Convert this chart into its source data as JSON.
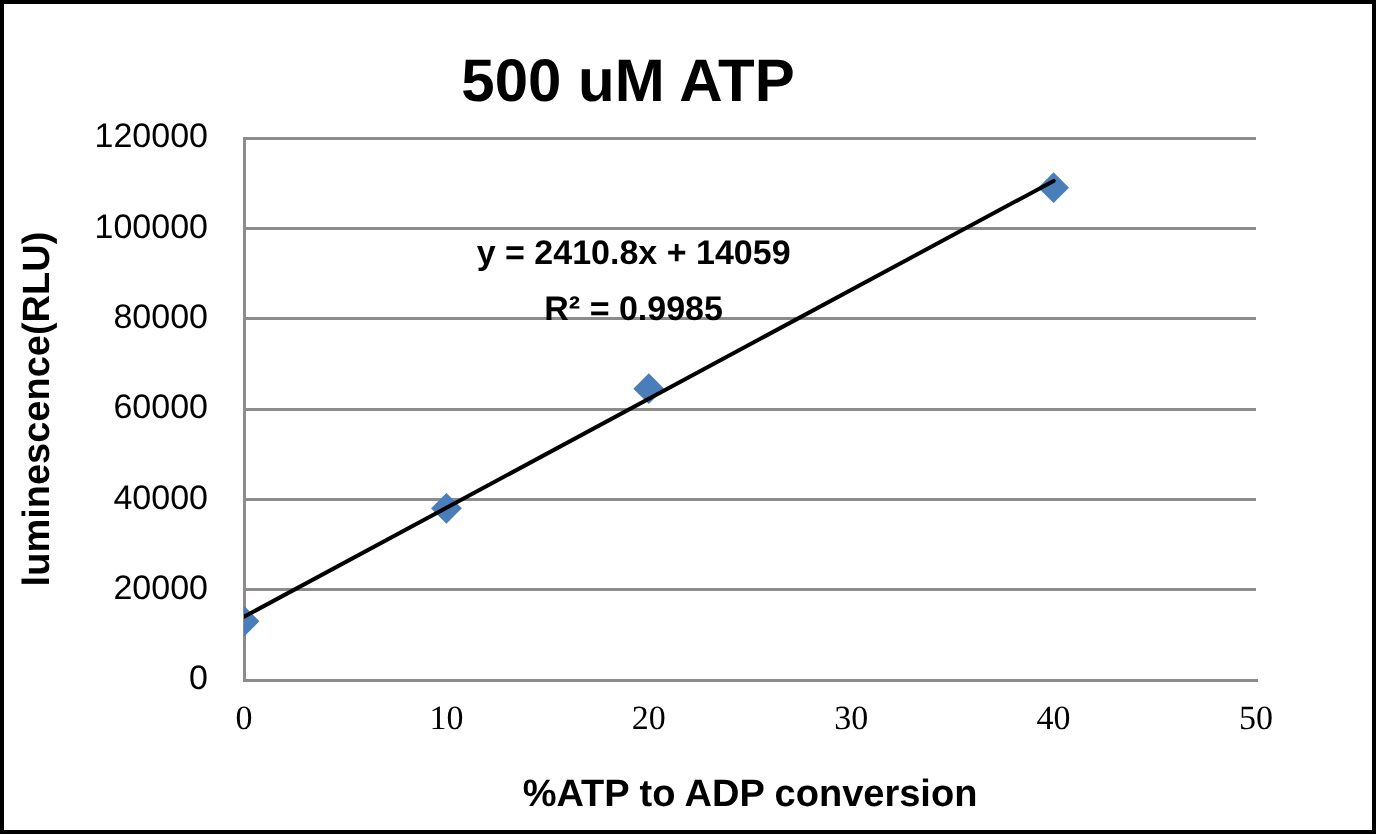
{
  "chart_data": {
    "type": "scatter",
    "title": "500 uM ATP",
    "xlabel": "%ATP to ADP conversion",
    "ylabel": "luminescence(RLU)",
    "annotations": [
      "y = 2410.8x + 14059",
      "R² = 0.9985"
    ],
    "series": [
      {
        "type": "scatter",
        "color": "#4a7ebb",
        "x": [
          0,
          10,
          20,
          40
        ],
        "values": [
          13000,
          38000,
          64500,
          109000
        ],
        "marker": "diamond"
      },
      {
        "type": "line",
        "color": "#000000",
        "x": [
          0,
          40
        ],
        "values": [
          14000,
          110500
        ],
        "marker": "none",
        "line_style": "solid"
      }
    ],
    "xlim": [
      0,
      50
    ],
    "xticks": [
      0,
      10,
      20,
      30,
      40,
      50
    ],
    "ylim": [
      0,
      120000
    ],
    "yticks": [
      0,
      20000,
      40000,
      60000,
      80000,
      100000,
      120000
    ],
    "grid": "y",
    "legend": false
  }
}
